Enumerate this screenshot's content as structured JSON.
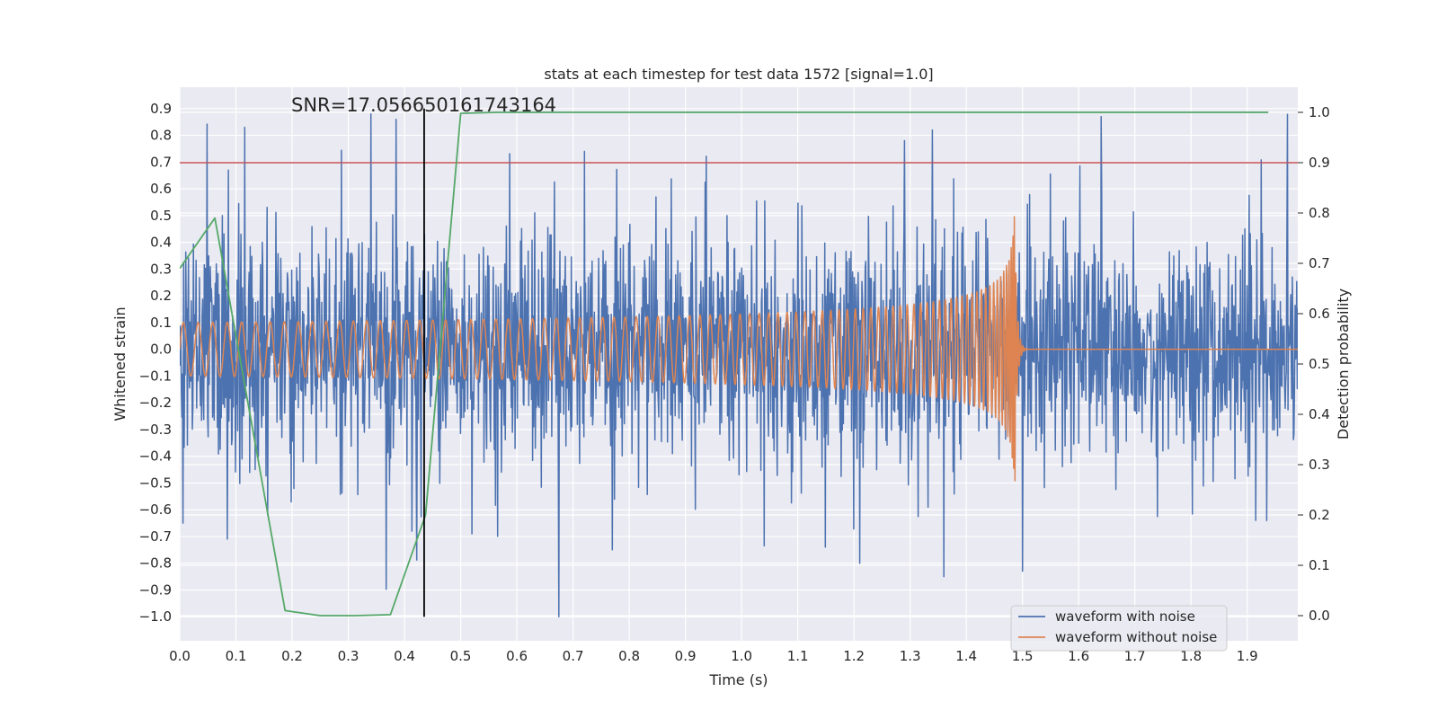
{
  "chart_data": {
    "type": "line",
    "title": "stats at each timestep for test data 1572 [signal=1.0]",
    "xlabel": "Time (s)",
    "ylabel_left": "Whitened strain",
    "ylabel_right": "Detection probability",
    "xlim": [
      0.0,
      1.99
    ],
    "ylim_left": [
      -1.09,
      0.98
    ],
    "ylim_right": [
      -0.05,
      1.05
    ],
    "x_ticks": [
      "0.0",
      "0.1",
      "0.2",
      "0.3",
      "0.4",
      "0.5",
      "0.6",
      "0.7",
      "0.8",
      "0.9",
      "1.0",
      "1.1",
      "1.2",
      "1.3",
      "1.4",
      "1.5",
      "1.6",
      "1.7",
      "1.8",
      "1.9"
    ],
    "y_ticks_left": [
      "0.9",
      "0.8",
      "0.7",
      "0.6",
      "0.5",
      "0.4",
      "0.3",
      "0.2",
      "0.1",
      "0.0",
      "−0.1",
      "−0.2",
      "−0.3",
      "−0.4",
      "−0.5",
      "−0.6",
      "−0.7",
      "−0.8",
      "−0.9",
      "−1.0"
    ],
    "y_ticks_right": [
      "1.0",
      "0.9",
      "0.8",
      "0.7",
      "0.6",
      "0.5",
      "0.4",
      "0.3",
      "0.2",
      "0.1",
      "0.0"
    ],
    "annotation": "SNR=17.056650161743164",
    "threshold": {
      "value": 0.9,
      "axis": "right",
      "color": "#c44e52"
    },
    "marker_line": {
      "x": 0.435,
      "y_range": [
        -1.0,
        0.9
      ],
      "color": "#000000"
    },
    "series": [
      {
        "name": "waveform with noise",
        "axis": "left",
        "color": "#4c72b0",
        "synthetic": "noise",
        "samples": 2048,
        "seed": 1572,
        "std": 0.28,
        "clip": [
          -1.0,
          0.9
        ],
        "spikes": [
          {
            "x": 0.087,
            "y": 0.67
          },
          {
            "x": 0.116,
            "y": 0.83
          },
          {
            "x": 0.34,
            "y": 0.88
          },
          {
            "x": 0.385,
            "y": 0.86
          },
          {
            "x": 0.72,
            "y": 0.74
          },
          {
            "x": 1.29,
            "y": 0.78
          },
          {
            "x": 1.34,
            "y": 0.82
          },
          {
            "x": 1.64,
            "y": 0.87
          },
          {
            "x": 0.675,
            "y": -1.0
          },
          {
            "x": 0.085,
            "y": -0.71
          },
          {
            "x": 0.006,
            "y": -0.65
          },
          {
            "x": 0.413,
            "y": -0.68
          },
          {
            "x": 0.52,
            "y": -0.69
          },
          {
            "x": 0.77,
            "y": -0.75
          },
          {
            "x": 1.21,
            "y": -0.8
          },
          {
            "x": 1.36,
            "y": -0.85
          },
          {
            "x": 1.5,
            "y": -0.83
          },
          {
            "x": 1.915,
            "y": -0.64
          }
        ]
      },
      {
        "name": "waveform without noise",
        "axis": "left",
        "color": "#dd8452",
        "synthetic": "chirp",
        "t_merge": 1.487,
        "f0": 38,
        "amp0": 0.1,
        "amp_peak": 0.5
      },
      {
        "name": "Detection probability",
        "axis": "right",
        "color": "#55a868",
        "x": [
          0.0,
          0.0625,
          0.1875,
          0.25,
          0.3125,
          0.375,
          0.4375,
          0.5,
          0.5625,
          1.9375
        ],
        "y": [
          0.69,
          0.79,
          0.01,
          0.0,
          0.0,
          0.002,
          0.2,
          0.998,
          1.0,
          1.0
        ]
      }
    ],
    "legend": {
      "position": "bottom-right",
      "entries": [
        {
          "label": "waveform with noise",
          "color": "#4c72b0"
        },
        {
          "label": "waveform without noise",
          "color": "#dd8452"
        }
      ]
    }
  }
}
